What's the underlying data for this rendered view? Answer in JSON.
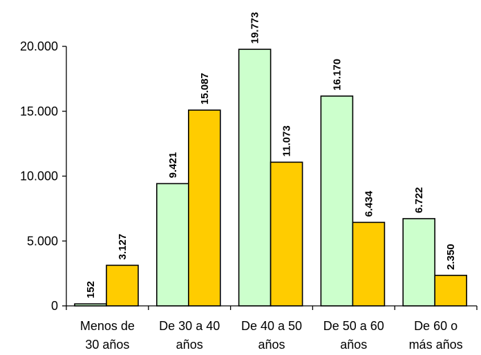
{
  "chart_data": {
    "type": "bar",
    "categories": [
      [
        "Menos de",
        "30 años"
      ],
      [
        "De 30 a 40",
        "años"
      ],
      [
        "De 40 a 50",
        "años"
      ],
      [
        "De 50 a 60",
        "años"
      ],
      [
        "De 60 o",
        "más años"
      ]
    ],
    "series": [
      {
        "values": [
          152,
          9421,
          19773,
          16170,
          6722
        ],
        "labels": [
          "152",
          "9.421",
          "19.773",
          "16.170",
          "6.722"
        ],
        "color": "#ccffcc"
      },
      {
        "values": [
          3127,
          15087,
          11073,
          6434,
          2350
        ],
        "labels": [
          "3.127",
          "15.087",
          "11.073",
          "6.434",
          "2.350"
        ],
        "color": "#ffcc00"
      }
    ],
    "ylim": [
      0,
      20000
    ],
    "yticks": [
      0,
      5000,
      10000,
      15000,
      20000
    ],
    "ytick_labels": [
      "0",
      "5.000",
      "10.000",
      "15.000",
      "20.000"
    ],
    "grid": false,
    "title": "",
    "xlabel": "",
    "ylabel": ""
  }
}
